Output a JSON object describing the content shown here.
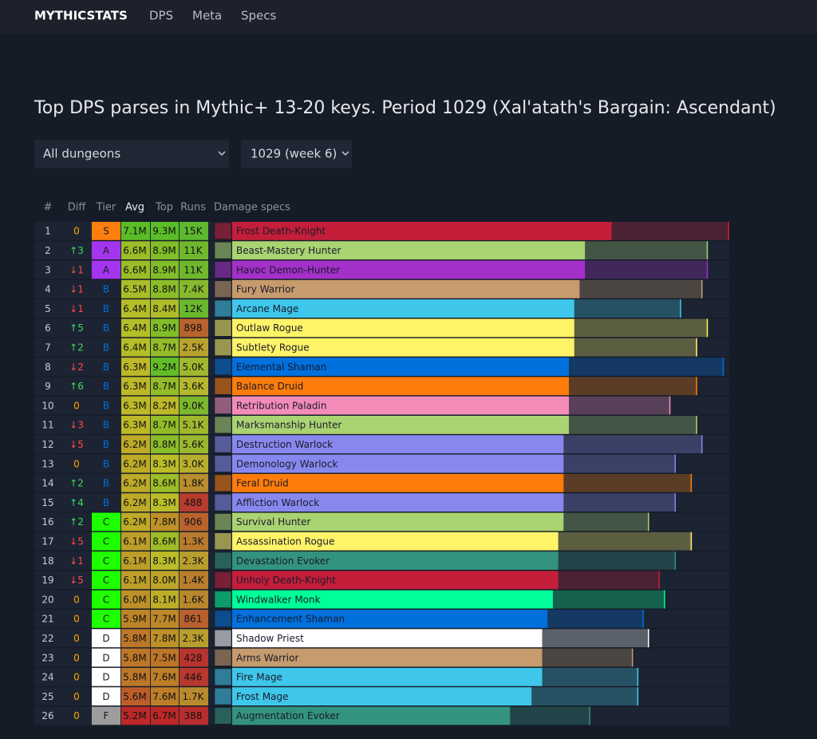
{
  "nav": {
    "brand": "MYTHICSTATS",
    "links": [
      "DPS",
      "Meta",
      "Specs"
    ]
  },
  "title": "Top DPS parses in Mythic+ 13-20 keys. Period 1029 (Xal'atath's Bargain: Ascendant)",
  "filters": [
    "All dungeons",
    "1029 (week 6)"
  ],
  "table": {
    "columns": [
      "#",
      "Diff",
      "Tier",
      "Avg",
      "Top",
      "Runs",
      "Damage specs"
    ],
    "rows": [
      {
        "rank": 1,
        "diff": "0",
        "tier": "S",
        "avg": {
          "value": 7.1,
          "label": "7.1M"
        },
        "top": {
          "value": 9.3,
          "label": "9.3M"
        },
        "runs": "15K",
        "spec": "Frost Death-Knight",
        "color": "#c41e3a"
      },
      {
        "rank": 2,
        "diff": "↑3",
        "tier": "A",
        "avg": {
          "value": 6.6,
          "label": "6.6M"
        },
        "top": {
          "value": 8.9,
          "label": "8.9M"
        },
        "runs": "11K",
        "spec": "Beast-Mastery Hunter",
        "color": "#aad372"
      },
      {
        "rank": 3,
        "diff": "↓1",
        "tier": "A",
        "avg": {
          "value": 6.6,
          "label": "6.6M"
        },
        "top": {
          "value": 8.9,
          "label": "8.9M"
        },
        "runs": "11K",
        "spec": "Havoc Demon-Hunter",
        "color": "#a330c9"
      },
      {
        "rank": 4,
        "diff": "↓1",
        "tier": "B",
        "avg": {
          "value": 6.5,
          "label": "6.5M"
        },
        "top": {
          "value": 8.8,
          "label": "8.8M"
        },
        "runs": "7.4K",
        "spec": "Fury Warrior",
        "color": "#c69b6d"
      },
      {
        "rank": 5,
        "diff": "↓1",
        "tier": "B",
        "avg": {
          "value": 6.4,
          "label": "6.4M"
        },
        "top": {
          "value": 8.4,
          "label": "8.4M"
        },
        "runs": "12K",
        "spec": "Arcane Mage",
        "color": "#3fc7eb"
      },
      {
        "rank": 6,
        "diff": "↑5",
        "tier": "B",
        "avg": {
          "value": 6.4,
          "label": "6.4M"
        },
        "top": {
          "value": 8.9,
          "label": "8.9M"
        },
        "runs": "898",
        "spec": "Outlaw Rogue",
        "color": "#fff468"
      },
      {
        "rank": 7,
        "diff": "↑2",
        "tier": "B",
        "avg": {
          "value": 6.4,
          "label": "6.4M"
        },
        "top": {
          "value": 8.7,
          "label": "8.7M"
        },
        "runs": "2.5K",
        "spec": "Subtlety Rogue",
        "color": "#fff468"
      },
      {
        "rank": 8,
        "diff": "↓2",
        "tier": "B",
        "avg": {
          "value": 6.3,
          "label": "6.3M"
        },
        "top": {
          "value": 9.2,
          "label": "9.2M"
        },
        "runs": "5.0K",
        "spec": "Elemental Shaman",
        "color": "#0070dd"
      },
      {
        "rank": 9,
        "diff": "↑6",
        "tier": "B",
        "avg": {
          "value": 6.3,
          "label": "6.3M"
        },
        "top": {
          "value": 8.7,
          "label": "8.7M"
        },
        "runs": "3.6K",
        "spec": "Balance Druid",
        "color": "#ff7c0a"
      },
      {
        "rank": 10,
        "diff": "0",
        "tier": "B",
        "avg": {
          "value": 6.3,
          "label": "6.3M"
        },
        "top": {
          "value": 8.2,
          "label": "8.2M"
        },
        "runs": "9.0K",
        "spec": "Retribution Paladin",
        "color": "#f48cba"
      },
      {
        "rank": 11,
        "diff": "↓3",
        "tier": "B",
        "avg": {
          "value": 6.3,
          "label": "6.3M"
        },
        "top": {
          "value": 8.7,
          "label": "8.7M"
        },
        "runs": "5.1K",
        "spec": "Marksmanship Hunter",
        "color": "#aad372"
      },
      {
        "rank": 12,
        "diff": "↓5",
        "tier": "B",
        "avg": {
          "value": 6.2,
          "label": "6.2M"
        },
        "top": {
          "value": 8.8,
          "label": "8.8M"
        },
        "runs": "5.6K",
        "spec": "Destruction Warlock",
        "color": "#8788ee"
      },
      {
        "rank": 13,
        "diff": "0",
        "tier": "B",
        "avg": {
          "value": 6.2,
          "label": "6.2M"
        },
        "top": {
          "value": 8.3,
          "label": "8.3M"
        },
        "runs": "3.0K",
        "spec": "Demonology Warlock",
        "color": "#8788ee"
      },
      {
        "rank": 14,
        "diff": "↑2",
        "tier": "B",
        "avg": {
          "value": 6.2,
          "label": "6.2M"
        },
        "top": {
          "value": 8.6,
          "label": "8.6M"
        },
        "runs": "1.8K",
        "spec": "Feral Druid",
        "color": "#ff7c0a"
      },
      {
        "rank": 15,
        "diff": "↑4",
        "tier": "B",
        "avg": {
          "value": 6.2,
          "label": "6.2M"
        },
        "top": {
          "value": 8.3,
          "label": "8.3M"
        },
        "runs": "488",
        "spec": "Affliction Warlock",
        "color": "#8788ee"
      },
      {
        "rank": 16,
        "diff": "↑2",
        "tier": "C",
        "avg": {
          "value": 6.2,
          "label": "6.2M"
        },
        "top": {
          "value": 7.8,
          "label": "7.8M"
        },
        "runs": "906",
        "spec": "Survival Hunter",
        "color": "#aad372"
      },
      {
        "rank": 17,
        "diff": "↓5",
        "tier": "C",
        "avg": {
          "value": 6.1,
          "label": "6.1M"
        },
        "top": {
          "value": 8.6,
          "label": "8.6M"
        },
        "runs": "1.3K",
        "spec": "Assassination Rogue",
        "color": "#fff468"
      },
      {
        "rank": 18,
        "diff": "↓1",
        "tier": "C",
        "avg": {
          "value": 6.1,
          "label": "6.1M"
        },
        "top": {
          "value": 8.3,
          "label": "8.3M"
        },
        "runs": "2.3K",
        "spec": "Devastation Evoker",
        "color": "#33937f"
      },
      {
        "rank": 19,
        "diff": "↓5",
        "tier": "C",
        "avg": {
          "value": 6.1,
          "label": "6.1M"
        },
        "top": {
          "value": 8.0,
          "label": "8.0M"
        },
        "runs": "1.4K",
        "spec": "Unholy Death-Knight",
        "color": "#c41e3a"
      },
      {
        "rank": 20,
        "diff": "0",
        "tier": "C",
        "avg": {
          "value": 6.0,
          "label": "6.0M"
        },
        "top": {
          "value": 8.1,
          "label": "8.1M"
        },
        "runs": "1.6K",
        "spec": "Windwalker Monk",
        "color": "#00ff98"
      },
      {
        "rank": 21,
        "diff": "0",
        "tier": "C",
        "avg": {
          "value": 5.9,
          "label": "5.9M"
        },
        "top": {
          "value": 7.7,
          "label": "7.7M"
        },
        "runs": "861",
        "spec": "Enhancement Shaman",
        "color": "#0070dd"
      },
      {
        "rank": 22,
        "diff": "0",
        "tier": "D",
        "avg": {
          "value": 5.8,
          "label": "5.8M"
        },
        "top": {
          "value": 7.8,
          "label": "7.8M"
        },
        "runs": "2.3K",
        "spec": "Shadow Priest",
        "color": "#ffffff"
      },
      {
        "rank": 23,
        "diff": "0",
        "tier": "D",
        "avg": {
          "value": 5.8,
          "label": "5.8M"
        },
        "top": {
          "value": 7.5,
          "label": "7.5M"
        },
        "runs": "428",
        "spec": "Arms Warrior",
        "color": "#c69b6d"
      },
      {
        "rank": 24,
        "diff": "0",
        "tier": "D",
        "avg": {
          "value": 5.8,
          "label": "5.8M"
        },
        "top": {
          "value": 7.6,
          "label": "7.6M"
        },
        "runs": "446",
        "spec": "Fire Mage",
        "color": "#3fc7eb"
      },
      {
        "rank": 25,
        "diff": "0",
        "tier": "D",
        "avg": {
          "value": 5.6,
          "label": "5.6M"
        },
        "top": {
          "value": 7.6,
          "label": "7.6M"
        },
        "runs": "1.7K",
        "spec": "Frost Mage",
        "color": "#3fc7eb"
      },
      {
        "rank": 26,
        "diff": "0",
        "tier": "F",
        "avg": {
          "value": 5.2,
          "label": "5.2M"
        },
        "top": {
          "value": 6.7,
          "label": "6.7M"
        },
        "runs": "388",
        "spec": "Augmentation Evoker",
        "color": "#33937f"
      }
    ]
  }
}
